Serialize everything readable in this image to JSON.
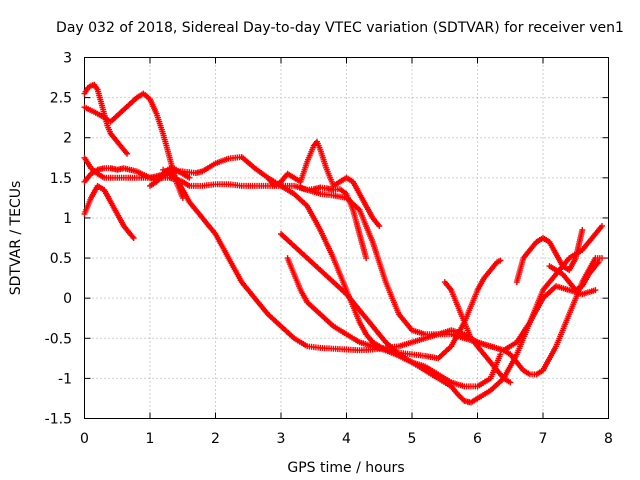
{
  "chart_data": {
    "type": "scatter",
    "title": "Day 032 of 2018, Sidereal Day-to-day VTEC variation (SDTVAR) for receiver ven1",
    "xlabel": "GPS time / hours",
    "ylabel": "SDTVAR / TECUs",
    "xlim": [
      0,
      8
    ],
    "ylim": [
      -1.5,
      3
    ],
    "xticks": [
      0,
      1,
      2,
      3,
      4,
      5,
      6,
      7,
      8
    ],
    "xtick_labels": [
      "0",
      "1",
      "2",
      "3",
      "4",
      "5",
      "6",
      "7",
      "8"
    ],
    "yticks": [
      -1.5,
      -1,
      -0.5,
      0,
      0.5,
      1,
      1.5,
      2,
      2.5,
      3
    ],
    "ytick_labels": [
      "-1.5",
      "-1",
      "-0.5",
      "0",
      "0.5",
      "1",
      "1.5",
      "2",
      "2.5",
      "3"
    ],
    "grid": true,
    "marker": "+",
    "color": "#ff0000",
    "series": [
      {
        "name": "track-1",
        "x": [
          0.0,
          0.1,
          0.2,
          0.3,
          0.4,
          0.5,
          0.6,
          0.8,
          0.9,
          1.0,
          1.1,
          1.2,
          1.3,
          1.4,
          1.5,
          1.6,
          1.7,
          1.8,
          2.0,
          2.2,
          2.4,
          2.6,
          2.8,
          3.0,
          3.1,
          3.2,
          3.4,
          3.6,
          3.8,
          4.0,
          4.1,
          4.2,
          4.3,
          4.4,
          4.5,
          4.6,
          4.8,
          5.0,
          5.2,
          5.4,
          5.6,
          5.8,
          6.0,
          6.2,
          6.35
        ],
        "y": [
          1.75,
          1.62,
          1.55,
          1.5,
          1.5,
          1.5,
          1.5,
          1.5,
          1.5,
          1.5,
          1.52,
          1.54,
          1.56,
          1.58,
          1.58,
          1.57,
          1.56,
          1.58,
          1.68,
          1.74,
          1.76,
          1.62,
          1.5,
          1.4,
          1.35,
          1.3,
          1.15,
          0.85,
          0.5,
          0.1,
          -0.1,
          -0.3,
          -0.45,
          -0.55,
          -0.6,
          -0.65,
          -0.72,
          -0.8,
          -0.85,
          -0.95,
          -1.05,
          -1.1,
          -1.1,
          -1.0,
          -0.7
        ]
      },
      {
        "name": "track-2",
        "x": [
          0.0,
          0.05,
          0.1,
          0.15,
          0.2,
          0.25,
          0.3,
          0.35,
          0.4,
          0.45,
          0.5,
          0.55,
          0.6,
          0.65
        ],
        "y": [
          2.55,
          2.62,
          2.65,
          2.66,
          2.6,
          2.45,
          2.3,
          2.15,
          2.05,
          2.0,
          1.95,
          1.9,
          1.85,
          1.8
        ]
      },
      {
        "name": "track-3",
        "x": [
          0.0,
          0.2,
          0.4,
          0.6,
          0.8,
          0.9,
          1.0,
          1.1,
          1.2,
          1.3,
          1.4,
          1.5
        ],
        "y": [
          2.38,
          2.3,
          2.2,
          2.35,
          2.5,
          2.55,
          2.48,
          2.3,
          2.05,
          1.75,
          1.45,
          1.25
        ]
      },
      {
        "name": "track-4",
        "x": [
          0.0,
          0.1,
          0.2,
          0.3,
          0.4,
          0.5,
          0.6,
          0.7,
          0.75
        ],
        "y": [
          1.05,
          1.25,
          1.4,
          1.35,
          1.2,
          1.05,
          0.9,
          0.8,
          0.75
        ]
      },
      {
        "name": "track-5",
        "x": [
          0.0,
          0.1,
          0.2,
          0.3,
          0.4,
          0.5,
          0.6,
          0.8,
          1.0,
          1.1,
          1.2,
          1.3,
          1.4,
          1.5,
          1.6,
          1.8,
          2.0,
          2.2,
          2.4,
          2.6,
          2.8,
          3.0,
          3.2,
          3.4,
          3.6,
          3.8,
          4.0,
          4.2,
          4.4,
          4.6,
          4.8,
          5.0,
          5.2,
          5.4,
          5.6,
          5.8,
          6.0,
          6.2,
          6.4,
          6.5,
          6.6,
          6.7,
          6.8,
          6.9,
          7.0,
          7.2,
          7.4,
          7.6,
          7.8,
          7.9
        ],
        "y": [
          1.45,
          1.55,
          1.6,
          1.62,
          1.62,
          1.6,
          1.62,
          1.58,
          1.5,
          1.48,
          1.5,
          1.5,
          1.48,
          1.45,
          1.4,
          1.4,
          1.42,
          1.42,
          1.4,
          1.4,
          1.4,
          1.4,
          1.4,
          1.35,
          1.3,
          1.28,
          1.25,
          1.1,
          0.7,
          0.2,
          -0.2,
          -0.4,
          -0.45,
          -0.45,
          -0.45,
          -0.5,
          -0.55,
          -0.6,
          -0.65,
          -0.7,
          -0.8,
          -0.9,
          -0.95,
          -0.95,
          -0.9,
          -0.6,
          -0.2,
          0.2,
          0.5,
          0.5
        ]
      },
      {
        "name": "track-6",
        "x": [
          1.0,
          1.1,
          1.2,
          1.3,
          1.4,
          1.5,
          1.6
        ],
        "y": [
          1.4,
          1.45,
          1.55,
          1.62,
          1.6,
          1.55,
          1.5
        ]
      },
      {
        "name": "track-7",
        "x": [
          1.2,
          1.4,
          1.6,
          1.8,
          2.0,
          2.2,
          2.4,
          2.6,
          2.8,
          3.0,
          3.2,
          3.4,
          3.6,
          3.8,
          4.0,
          4.2,
          4.4,
          4.6,
          4.8,
          5.0,
          5.2,
          5.4,
          5.6,
          5.8,
          6.0,
          6.2,
          6.4,
          6.6,
          6.8,
          7.0,
          7.2,
          7.4,
          7.6,
          7.8
        ],
        "y": [
          1.6,
          1.5,
          1.2,
          1.0,
          0.8,
          0.5,
          0.2,
          0.0,
          -0.2,
          -0.35,
          -0.5,
          -0.6,
          -0.62,
          -0.63,
          -0.64,
          -0.65,
          -0.64,
          -0.62,
          -0.6,
          -0.55,
          -0.5,
          -0.45,
          -0.4,
          -0.45,
          -0.55,
          -0.6,
          -0.65,
          -0.55,
          -0.3,
          0.0,
          0.15,
          0.1,
          0.05,
          0.1
        ]
      },
      {
        "name": "track-8",
        "x": [
          2.8,
          2.9,
          3.0,
          3.1,
          3.2,
          3.3,
          3.4,
          3.5,
          3.55,
          3.6,
          3.7,
          3.8,
          3.9,
          4.0,
          4.1,
          4.2,
          4.3,
          4.4,
          4.5
        ],
        "y": [
          1.5,
          1.4,
          1.45,
          1.55,
          1.5,
          1.45,
          1.7,
          1.9,
          1.95,
          1.85,
          1.6,
          1.4,
          1.45,
          1.5,
          1.45,
          1.3,
          1.15,
          1.0,
          0.9
        ]
      },
      {
        "name": "track-9",
        "x": [
          3.0,
          3.2,
          3.4,
          3.6,
          3.8,
          4.0,
          4.2,
          4.4,
          4.6,
          4.8,
          5.0,
          5.2,
          5.4,
          5.6,
          5.7,
          5.8,
          5.9,
          6.0,
          6.2,
          6.4,
          6.6,
          6.8,
          7.0,
          7.2,
          7.4,
          7.6,
          7.8,
          7.9
        ],
        "y": [
          0.8,
          0.65,
          0.5,
          0.35,
          0.2,
          0.05,
          -0.15,
          -0.35,
          -0.55,
          -0.7,
          -0.8,
          -0.9,
          -1.0,
          -1.1,
          -1.2,
          -1.28,
          -1.3,
          -1.25,
          -1.15,
          -1.0,
          -0.7,
          -0.3,
          0.1,
          0.3,
          0.5,
          0.6,
          0.8,
          0.9
        ]
      },
      {
        "name": "track-10",
        "x": [
          3.1,
          3.2,
          3.3,
          3.4,
          3.6,
          3.8,
          4.0,
          4.2,
          4.4,
          4.6,
          4.8,
          5.0,
          5.2,
          5.4,
          5.6,
          5.8,
          6.0,
          6.1,
          6.2,
          6.3,
          6.35
        ],
        "y": [
          0.5,
          0.3,
          0.1,
          -0.05,
          -0.2,
          -0.35,
          -0.45,
          -0.55,
          -0.6,
          -0.65,
          -0.68,
          -0.7,
          -0.72,
          -0.75,
          -0.6,
          -0.3,
          0.1,
          0.25,
          0.35,
          0.45,
          0.47
        ]
      },
      {
        "name": "track-11",
        "x": [
          3.3,
          3.4,
          3.5,
          3.6,
          3.7,
          3.8,
          3.9,
          4.0,
          4.1,
          4.2,
          4.3
        ],
        "y": [
          1.38,
          1.35,
          1.36,
          1.38,
          1.37,
          1.35,
          1.36,
          1.3,
          1.1,
          0.8,
          0.5
        ]
      },
      {
        "name": "track-12",
        "x": [
          5.5,
          5.6,
          5.7,
          5.8,
          5.9,
          6.0,
          6.1,
          6.2,
          6.3,
          6.4,
          6.5
        ],
        "y": [
          0.2,
          0.1,
          -0.1,
          -0.3,
          -0.5,
          -0.6,
          -0.7,
          -0.8,
          -0.9,
          -1.0,
          -1.05
        ]
      },
      {
        "name": "track-13",
        "x": [
          6.6,
          6.7,
          6.8,
          6.9,
          7.0,
          7.1,
          7.2,
          7.3,
          7.4,
          7.5,
          7.6
        ],
        "y": [
          0.2,
          0.5,
          0.6,
          0.7,
          0.75,
          0.7,
          0.55,
          0.4,
          0.35,
          0.5,
          0.85
        ]
      },
      {
        "name": "track-14",
        "x": [
          7.1,
          7.2,
          7.3,
          7.4,
          7.5,
          7.6,
          7.7,
          7.8,
          7.85
        ],
        "y": [
          0.4,
          0.35,
          0.3,
          0.2,
          0.1,
          0.15,
          0.3,
          0.4,
          0.45
        ]
      }
    ]
  }
}
